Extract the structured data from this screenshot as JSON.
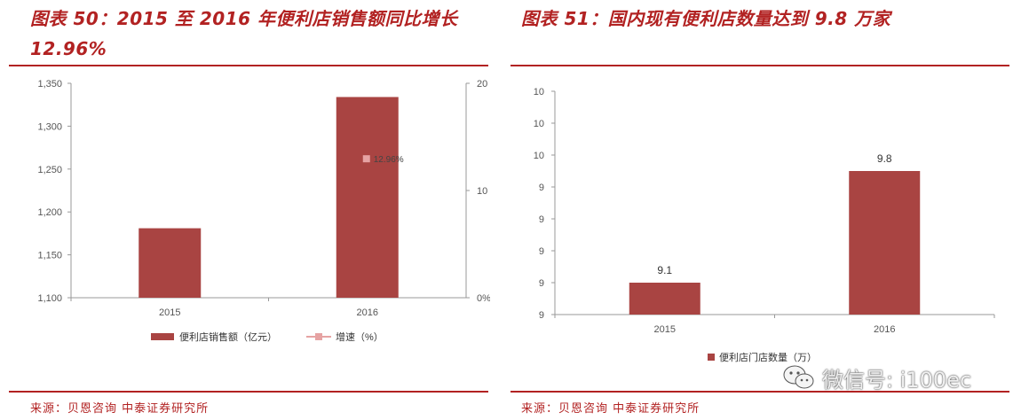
{
  "left": {
    "title": "图表 50：2015 至 2016 年便利店销售额同比增长 12.96%",
    "source": "来源：贝恩咨询  中泰证券研究所"
  },
  "right": {
    "title": "图表 51：国内现有便利店数量达到 9.8 万家",
    "source": "来源：贝恩咨询  中泰证券研究所"
  },
  "watermark": {
    "text": "微信号: i100ec",
    "icon": "wechat-icon"
  },
  "colors": {
    "accent": "#b22222",
    "bar": "#a94442",
    "line_marker": "#e6a3a3"
  },
  "chart_data": [
    {
      "type": "bar",
      "categories": [
        "2015",
        "2016"
      ],
      "series": [
        {
          "name": "便利店销售额（亿元）",
          "axis": "left",
          "type": "bar",
          "values": [
            1181,
            1334
          ]
        },
        {
          "name": "增速（%）",
          "axis": "right",
          "type": "line",
          "values": [
            null,
            12.96
          ]
        }
      ],
      "data_labels": [
        "12.96%"
      ],
      "y_left": {
        "lim": [
          1100,
          1350
        ],
        "ticks": [
          "1,100",
          "1,150",
          "1,200",
          "1,250",
          "1,300",
          "1,350"
        ]
      },
      "y_right": {
        "lim": [
          0,
          20
        ],
        "ticks": [
          "0%",
          "10",
          "20"
        ],
        "tick_values": [
          0,
          10,
          20
        ]
      },
      "legend": "bottom",
      "grid": false
    },
    {
      "type": "bar",
      "categories": [
        "2015",
        "2016"
      ],
      "series": [
        {
          "name": "便利店门店数量（万）",
          "values": [
            9.1,
            9.8
          ]
        }
      ],
      "data_labels": [
        "9.1",
        "9.8"
      ],
      "ylim": [
        8.9,
        10.3
      ],
      "yticks": [
        "9",
        "9",
        "9",
        "9",
        "9",
        "10",
        "10",
        "10"
      ],
      "legend": "bottom",
      "grid": false
    }
  ]
}
